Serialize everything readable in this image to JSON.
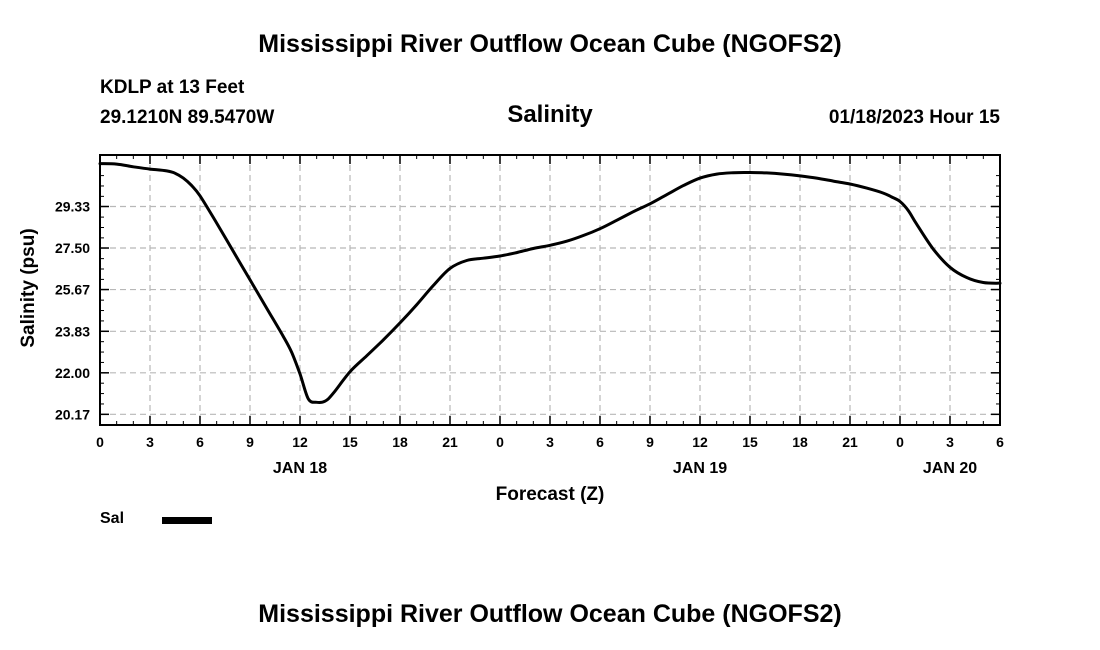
{
  "header": {
    "title": "Mississippi River Outflow Ocean Cube (NGOFS2)",
    "station": "KDLP at 13 Feet",
    "coordinates": "29.1210N  89.5470W",
    "variable": "Salinity",
    "run_time": "01/18/2023 Hour 15"
  },
  "legend": {
    "label": "Sal",
    "color": "#000000"
  },
  "footer": {
    "title": "Mississippi River Outflow Ocean Cube (NGOFS2)"
  },
  "chart_data": {
    "type": "line",
    "title": "Salinity",
    "xlabel": "Forecast (Z)",
    "ylabel": "Salinity (psu)",
    "xlim": [
      0,
      54
    ],
    "ylim": [
      19.7,
      31.6
    ],
    "x_tick_values": [
      0,
      3,
      6,
      9,
      12,
      15,
      18,
      21,
      24,
      27,
      30,
      33,
      36,
      39,
      42,
      45,
      48,
      51,
      54
    ],
    "x_tick_labels": [
      "0",
      "3",
      "6",
      "9",
      "12",
      "15",
      "18",
      "21",
      "0",
      "3",
      "6",
      "9",
      "12",
      "15",
      "18",
      "21",
      "0",
      "3",
      "6"
    ],
    "date_labels": [
      {
        "x": 12,
        "label": "JAN 18"
      },
      {
        "x": 36,
        "label": "JAN 19"
      },
      {
        "x": 51,
        "label": "JAN 20"
      }
    ],
    "y_ticks": [
      "20.17",
      "22.00",
      "23.83",
      "25.67",
      "27.50",
      "29.33"
    ],
    "grid": true,
    "series": [
      {
        "name": "Sal",
        "color": "#000000",
        "x": [
          0,
          1,
          2,
          3,
          4,
          4.5,
          5,
          5.5,
          6,
          7,
          8,
          9,
          10,
          11,
          11.5,
          12,
          12.5,
          13,
          13.5,
          14,
          15,
          16,
          17,
          18,
          19,
          20,
          21,
          22,
          23,
          24,
          25,
          26,
          27,
          28,
          29,
          30,
          31,
          32,
          33,
          34,
          35,
          36,
          37,
          38,
          39,
          40,
          41,
          42,
          43,
          44,
          45,
          46,
          47,
          47.5,
          48,
          48.5,
          49,
          50,
          51,
          52,
          53,
          54
        ],
        "y": [
          31.22,
          31.2,
          31.08,
          30.98,
          30.9,
          30.8,
          30.58,
          30.25,
          29.8,
          28.6,
          27.35,
          26.1,
          24.85,
          23.6,
          22.9,
          21.95,
          20.85,
          20.7,
          20.75,
          21.1,
          22.05,
          22.75,
          23.45,
          24.2,
          25.0,
          25.85,
          26.6,
          26.95,
          27.05,
          27.15,
          27.3,
          27.48,
          27.62,
          27.8,
          28.05,
          28.35,
          28.72,
          29.1,
          29.45,
          29.85,
          30.25,
          30.58,
          30.76,
          30.82,
          30.83,
          30.81,
          30.76,
          30.68,
          30.58,
          30.45,
          30.32,
          30.14,
          29.92,
          29.75,
          29.55,
          29.15,
          28.55,
          27.45,
          26.65,
          26.2,
          25.98,
          25.95
        ]
      }
    ]
  }
}
